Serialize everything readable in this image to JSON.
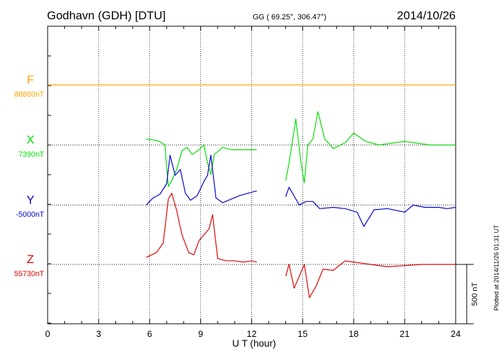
{
  "header": {
    "station": "Godhavn (GDH)  [DTU]",
    "coords": "GG ( 69.25°, 306.47°)",
    "date": "2014/10/26"
  },
  "footer_note": "Plotted at 2014/11/26 01:31  UT",
  "chart_data": {
    "type": "line",
    "title": "Godhavn (GDH)  [DTU]",
    "xlabel": "U T (hour)",
    "xlim": [
      0,
      24
    ],
    "xticks": [
      "0",
      "3",
      "6",
      "9",
      "12",
      "15",
      "18",
      "21",
      "24"
    ],
    "grid": true,
    "scale_bar": "500 nT",
    "colors": {
      "F": "#ffa500",
      "X": "#00dd00",
      "Y": "#0000cc",
      "Z": "#dd0000"
    },
    "series": [
      {
        "name": "F",
        "baseline_label": "88880nT",
        "x": [
          0,
          24
        ],
        "y": [
          0,
          0
        ]
      },
      {
        "name": "X",
        "baseline_label": "7390nT",
        "x": [
          5.8,
          6.1,
          6.5,
          6.9,
          7.0,
          7.1,
          7.3,
          7.6,
          7.9,
          8.2,
          8.5,
          8.9,
          9.2,
          9.4,
          9.6,
          9.8,
          10.3,
          10.8,
          11.3,
          11.8,
          12.3
        ],
        "y": [
          50,
          45,
          35,
          0,
          -190,
          -350,
          -300,
          -200,
          -50,
          -20,
          -80,
          -40,
          0,
          -150,
          -250,
          -80,
          -20,
          -40,
          -40,
          -40,
          -40
        ]
      },
      {
        "name": "X",
        "x": [
          14.0,
          14.2,
          14.6,
          14.9,
          15.1,
          15.3,
          15.6,
          15.9,
          16.3,
          16.8,
          17.5,
          18.0,
          18.7,
          19.5,
          21,
          22.5,
          24
        ],
        "y": [
          -300,
          -150,
          220,
          -150,
          -320,
          0,
          50,
          280,
          50,
          -30,
          20,
          100,
          30,
          0,
          30,
          0,
          0
        ]
      },
      {
        "name": "Y",
        "baseline_label": "-5000nT",
        "x": [
          5.8,
          6.2,
          6.6,
          7.0,
          7.2,
          7.5,
          7.8,
          8.1,
          8.4,
          8.8,
          9.2,
          9.4,
          9.6,
          9.9,
          10.3,
          10.8,
          11.3,
          11.8,
          12.3
        ],
        "y": [
          0,
          60,
          90,
          180,
          420,
          250,
          300,
          100,
          40,
          80,
          200,
          250,
          420,
          60,
          20,
          50,
          80,
          100,
          120
        ]
      },
      {
        "name": "Y",
        "x": [
          14.0,
          14.2,
          14.8,
          15.2,
          15.6,
          16.0,
          16.8,
          17.5,
          18.2,
          18.6,
          19.2,
          20.0,
          21.0,
          21.5,
          22.2,
          23.0,
          23.5,
          24
        ],
        "y": [
          70,
          150,
          0,
          30,
          30,
          -30,
          -20,
          -30,
          -60,
          -180,
          -40,
          -30,
          -60,
          0,
          -20,
          -20,
          -30,
          -20
        ]
      },
      {
        "name": "Z",
        "baseline_label": "55730nT",
        "x": [
          5.8,
          6.4,
          6.8,
          7.1,
          7.3,
          7.6,
          7.9,
          8.3,
          8.6,
          8.9,
          9.2,
          9.5,
          9.7,
          10.0,
          10.5,
          11.0,
          11.5,
          12.0,
          12.3
        ],
        "y": [
          60,
          100,
          180,
          550,
          600,
          450,
          250,
          100,
          80,
          200,
          250,
          300,
          420,
          50,
          30,
          30,
          20,
          30,
          20
        ]
      },
      {
        "name": "Z",
        "x": [
          14.0,
          14.2,
          14.5,
          14.8,
          15.1,
          15.4,
          15.8,
          16.2,
          16.8,
          17.5,
          18.0,
          18.5,
          19.0,
          20.0,
          21.0,
          22.0,
          23.0,
          24.0
        ],
        "y": [
          -100,
          0,
          -200,
          -100,
          0,
          -280,
          -180,
          -40,
          -50,
          30,
          20,
          10,
          0,
          -20,
          -10,
          0,
          0,
          0
        ]
      }
    ]
  }
}
